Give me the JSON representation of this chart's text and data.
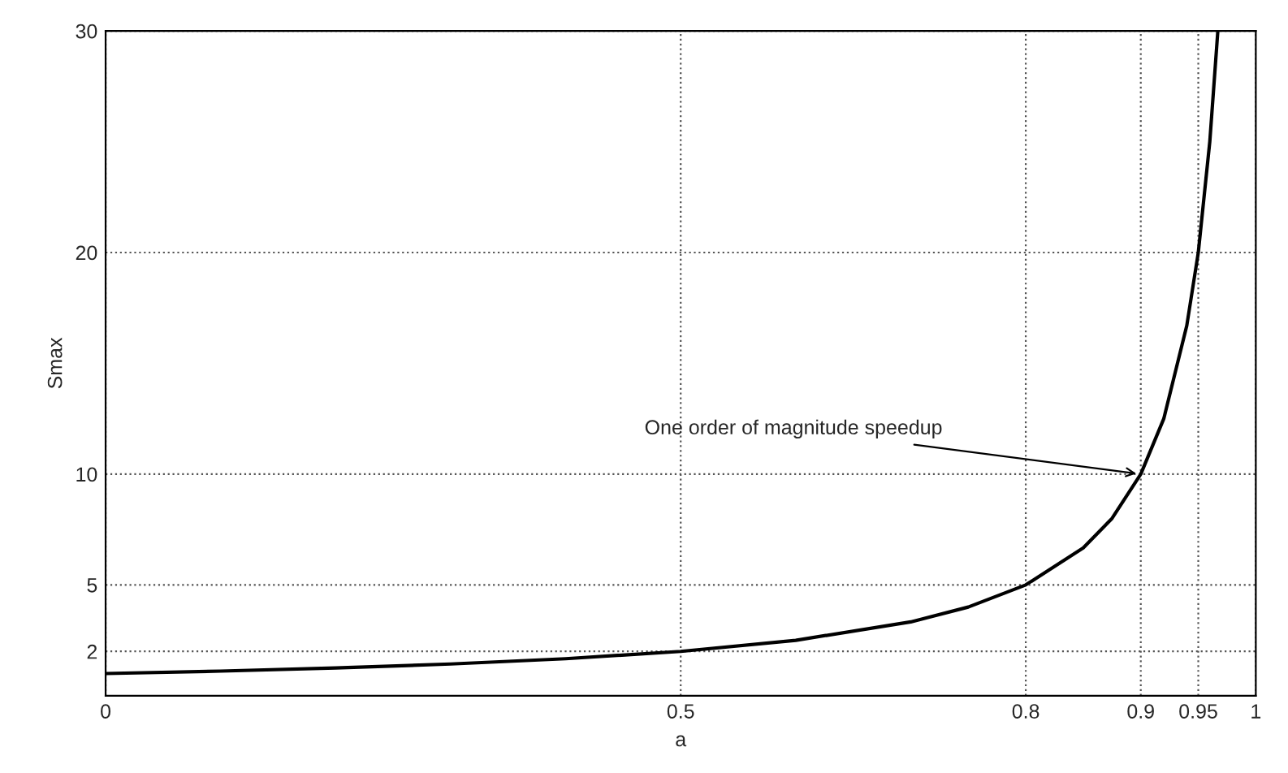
{
  "chart_data": {
    "type": "line",
    "xlabel": "a",
    "ylabel": "Smax",
    "x": [
      0,
      0.1,
      0.2,
      0.3,
      0.4,
      0.5,
      0.6,
      0.7,
      0.75,
      0.8,
      0.85,
      0.875,
      0.9,
      0.92,
      0.94,
      0.95,
      0.96,
      0.967
    ],
    "series": [
      {
        "color": "#000000",
        "values": [
          1,
          1.11,
          1.25,
          1.43,
          1.67,
          2,
          2.5,
          3.33,
          4,
          5,
          6.67,
          8,
          10,
          12.5,
          16.7,
          20,
          25,
          30
        ]
      }
    ],
    "xlim": [
      0,
      1
    ],
    "ylim": [
      0,
      30
    ],
    "xticks": [
      0,
      0.5,
      0.8,
      0.9,
      0.95,
      1
    ],
    "yticks": [
      2,
      5,
      10,
      20,
      30
    ],
    "grid": true,
    "marker": "none",
    "line_style": "solid",
    "legend": false,
    "annotations": [
      {
        "text": "One order of magnitude speedup",
        "x": 0.9,
        "y": 10
      }
    ]
  }
}
